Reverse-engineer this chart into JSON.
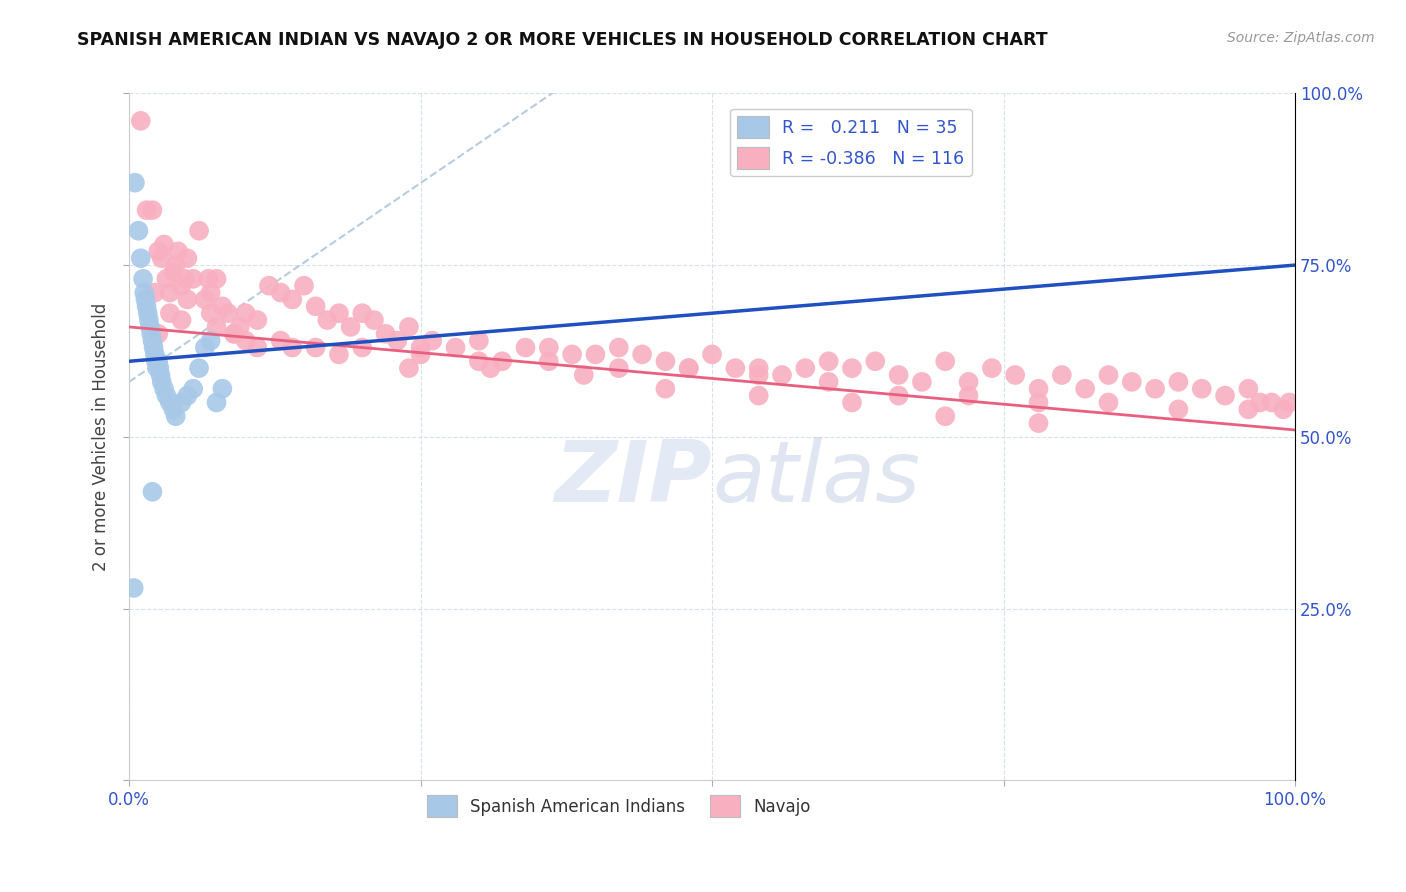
{
  "title": "SPANISH AMERICAN INDIAN VS NAVAJO 2 OR MORE VEHICLES IN HOUSEHOLD CORRELATION CHART",
  "source": "Source: ZipAtlas.com",
  "ylabel": "2 or more Vehicles in Household",
  "legend_labels": [
    "Spanish American Indians",
    "Navajo"
  ],
  "r_blue": 0.211,
  "n_blue": 35,
  "r_pink": -0.386,
  "n_pink": 116,
  "blue_color": "#a8c8e8",
  "pink_color": "#f8b0c0",
  "blue_line_color": "#2050c0",
  "pink_line_color": "#e86080",
  "dashed_line_color": "#b8cce0",
  "axis_label_color": "#3355cc",
  "grid_color": "#d8e0ec",
  "background_color": "#ffffff",
  "xmin": 0.0,
  "xmax": 1.0,
  "ymin": 0.0,
  "ymax": 1.0,
  "blue_x": [
    0.005,
    0.008,
    0.01,
    0.012,
    0.013,
    0.014,
    0.015,
    0.016,
    0.017,
    0.018,
    0.019,
    0.02,
    0.021,
    0.022,
    0.023,
    0.024,
    0.025,
    0.026,
    0.027,
    0.028,
    0.03,
    0.032,
    0.035,
    0.038,
    0.04,
    0.045,
    0.05,
    0.055,
    0.06,
    0.065,
    0.07,
    0.075,
    0.08,
    0.02,
    0.004
  ],
  "blue_y": [
    0.87,
    0.8,
    0.76,
    0.73,
    0.71,
    0.7,
    0.69,
    0.68,
    0.67,
    0.66,
    0.65,
    0.64,
    0.63,
    0.62,
    0.61,
    0.6,
    0.61,
    0.6,
    0.59,
    0.58,
    0.57,
    0.56,
    0.55,
    0.54,
    0.53,
    0.55,
    0.56,
    0.57,
    0.6,
    0.63,
    0.64,
    0.55,
    0.57,
    0.42,
    0.28
  ],
  "pink_x": [
    0.01,
    0.015,
    0.02,
    0.025,
    0.028,
    0.03,
    0.032,
    0.035,
    0.038,
    0.04,
    0.042,
    0.045,
    0.048,
    0.05,
    0.055,
    0.06,
    0.065,
    0.068,
    0.07,
    0.075,
    0.08,
    0.085,
    0.09,
    0.095,
    0.1,
    0.11,
    0.12,
    0.13,
    0.14,
    0.15,
    0.16,
    0.17,
    0.18,
    0.19,
    0.2,
    0.21,
    0.22,
    0.23,
    0.24,
    0.25,
    0.26,
    0.28,
    0.3,
    0.32,
    0.34,
    0.36,
    0.38,
    0.4,
    0.42,
    0.44,
    0.46,
    0.48,
    0.5,
    0.52,
    0.54,
    0.56,
    0.58,
    0.6,
    0.62,
    0.64,
    0.66,
    0.68,
    0.7,
    0.72,
    0.74,
    0.76,
    0.78,
    0.8,
    0.82,
    0.84,
    0.86,
    0.88,
    0.9,
    0.92,
    0.94,
    0.96,
    0.97,
    0.98,
    0.99,
    0.995,
    0.022,
    0.035,
    0.05,
    0.07,
    0.09,
    0.11,
    0.13,
    0.16,
    0.2,
    0.25,
    0.3,
    0.36,
    0.42,
    0.48,
    0.54,
    0.6,
    0.66,
    0.72,
    0.78,
    0.84,
    0.9,
    0.96,
    0.025,
    0.045,
    0.075,
    0.1,
    0.14,
    0.18,
    0.24,
    0.31,
    0.39,
    0.46,
    0.54,
    0.62,
    0.7,
    0.78
  ],
  "pink_y": [
    0.96,
    0.83,
    0.83,
    0.77,
    0.76,
    0.78,
    0.73,
    0.71,
    0.74,
    0.75,
    0.77,
    0.72,
    0.73,
    0.76,
    0.73,
    0.8,
    0.7,
    0.73,
    0.71,
    0.73,
    0.69,
    0.68,
    0.65,
    0.66,
    0.68,
    0.67,
    0.72,
    0.71,
    0.7,
    0.72,
    0.69,
    0.67,
    0.68,
    0.66,
    0.68,
    0.67,
    0.65,
    0.64,
    0.66,
    0.63,
    0.64,
    0.63,
    0.64,
    0.61,
    0.63,
    0.63,
    0.62,
    0.62,
    0.63,
    0.62,
    0.61,
    0.6,
    0.62,
    0.6,
    0.6,
    0.59,
    0.6,
    0.61,
    0.6,
    0.61,
    0.59,
    0.58,
    0.61,
    0.58,
    0.6,
    0.59,
    0.57,
    0.59,
    0.57,
    0.59,
    0.58,
    0.57,
    0.58,
    0.57,
    0.56,
    0.57,
    0.55,
    0.55,
    0.54,
    0.55,
    0.71,
    0.68,
    0.7,
    0.68,
    0.65,
    0.63,
    0.64,
    0.63,
    0.63,
    0.62,
    0.61,
    0.61,
    0.6,
    0.6,
    0.59,
    0.58,
    0.56,
    0.56,
    0.55,
    0.55,
    0.54,
    0.54,
    0.65,
    0.67,
    0.66,
    0.64,
    0.63,
    0.62,
    0.6,
    0.6,
    0.59,
    0.57,
    0.56,
    0.55,
    0.53,
    0.52
  ]
}
